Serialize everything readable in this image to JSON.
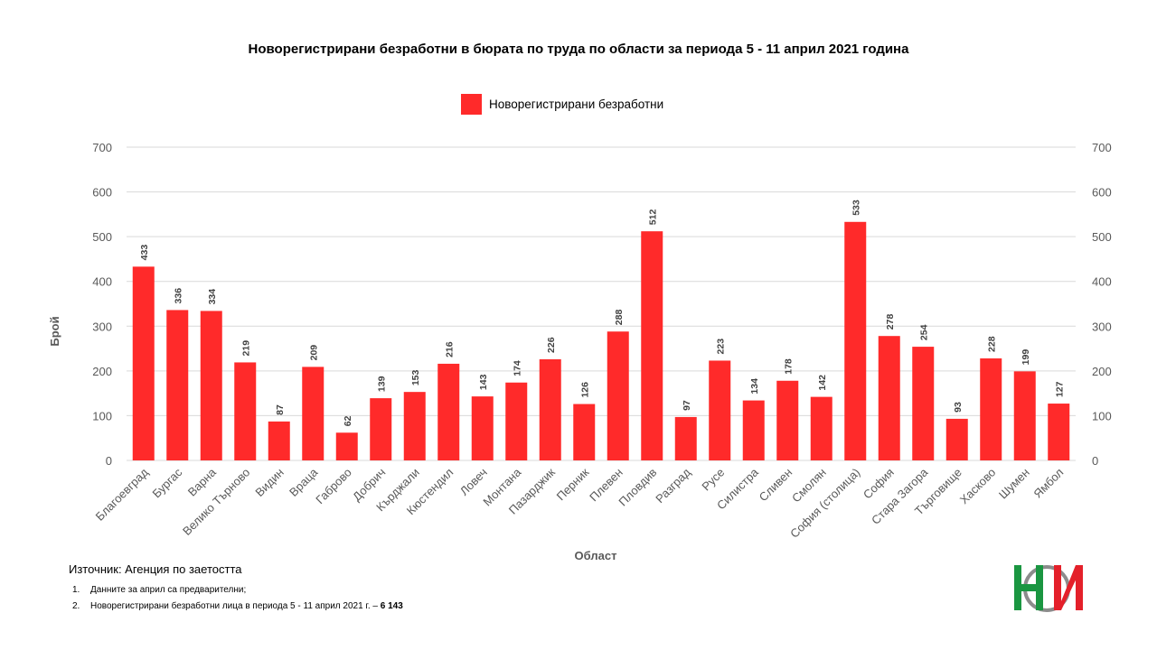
{
  "colors": {
    "bar": "#ff2a2a",
    "grid": "#d9d9d9",
    "axis_text": "#595959",
    "logo_green": "#1a9641",
    "logo_red": "#e4202a",
    "logo_gray": "#8c8c8c"
  },
  "source": "Източник: Агенция по заетостта",
  "notes": [
    {
      "num": "1.",
      "text": "Данните за април са предварителни;",
      "total": ""
    },
    {
      "num": "2.",
      "text": "Новорегистрирани безработни лица в периода  5 - 11 април 2021 г. – ",
      "total": "6 143"
    }
  ],
  "logo": {
    "icon": "nsi-logo-icon"
  },
  "chart_data": {
    "type": "bar",
    "title": "Новорегистрирани безработни в бюрата по труда по области за периода 5 - 11 април 2021 година",
    "xlabel": "Област",
    "ylabel": "Брой",
    "ylim": [
      0,
      700
    ],
    "yticks": [
      0,
      100,
      200,
      300,
      400,
      500,
      600,
      700
    ],
    "secondary_y_axis": true,
    "grid": true,
    "legend_position": "top-center",
    "categories": [
      "Благоевград",
      "Бургас",
      "Варна",
      "Велико Търново",
      "Видин",
      "Враца",
      "Габрово",
      "Добрич",
      "Кърджали",
      "Кюстендил",
      "Ловеч",
      "Монтана",
      "Пазарджик",
      "Перник",
      "Плевен",
      "Пловдив",
      "Разград",
      "Русе",
      "Силистра",
      "Сливен",
      "Смолян",
      "София (столица)",
      "София",
      "Стара Загора",
      "Търговище",
      "Хасково",
      "Шумен",
      "Ямбол"
    ],
    "series": [
      {
        "name": "Новорегистрирани безработни",
        "values": [
          433,
          336,
          334,
          219,
          87,
          209,
          62,
          139,
          153,
          216,
          143,
          174,
          226,
          126,
          288,
          512,
          97,
          223,
          134,
          178,
          142,
          533,
          278,
          254,
          93,
          228,
          199,
          127
        ]
      }
    ]
  }
}
